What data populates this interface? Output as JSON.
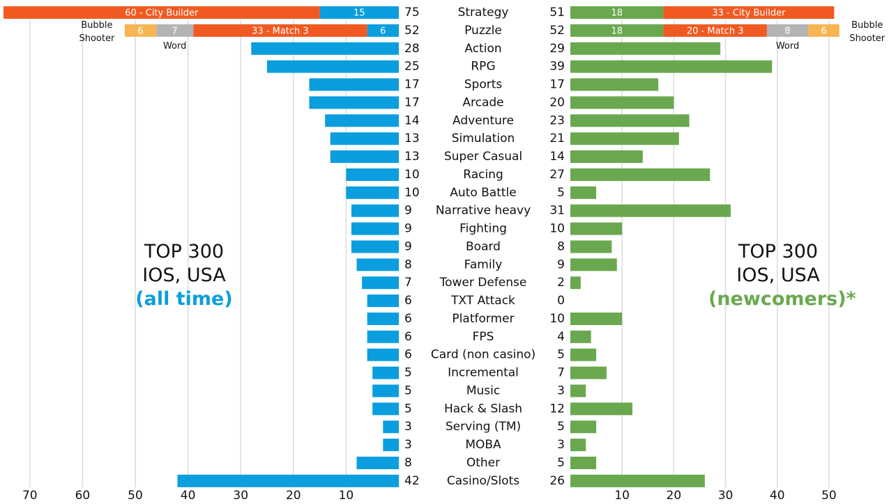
{
  "chart_data": {
    "type": "bar",
    "orientation": "horizontal",
    "categories": [
      "Strategy",
      "Puzzle",
      "Action",
      "RPG",
      "Sports",
      "Arcade",
      "Adventure",
      "Simulation",
      "Super Casual",
      "Racing",
      "Auto Battle",
      "Narrative heavy",
      "Fighting",
      "Board",
      "Family",
      "Tower Defense",
      "TXT Attack",
      "Platformer",
      "FPS",
      "Card (non casino)",
      "Incremental",
      "Music",
      "Hack & Slash",
      "Serving (TM)",
      "MOBA",
      "Other",
      "Casino/Slots"
    ],
    "panels": [
      {
        "title": "TOP 300 IOS, USA",
        "subtitle": "(all time)",
        "color": "#0a9ede",
        "values": [
          75,
          52,
          28,
          25,
          17,
          17,
          14,
          13,
          13,
          10,
          10,
          9,
          9,
          9,
          8,
          7,
          6,
          6,
          6,
          6,
          5,
          5,
          5,
          3,
          3,
          8,
          42
        ],
        "segments": [
          [
            {
              "value": 15,
              "color": "#0a9ede"
            },
            {
              "value": 60,
              "color": "#f05a22",
              "label": "60 - City Builder"
            }
          ],
          [
            {
              "value": 6,
              "color": "#0a9ede"
            },
            {
              "value": 33,
              "color": "#f05a22",
              "label": "33 - Match 3"
            },
            {
              "value": 7,
              "color": "#b3b3b3",
              "note": "Word"
            },
            {
              "value": 6,
              "color": "#f7b551",
              "note": "Bubble Shooter"
            }
          ]
        ],
        "xlim": [
          0,
          75
        ],
        "xticks": [
          10,
          20,
          30,
          40,
          50,
          60,
          70
        ],
        "grid": true
      },
      {
        "title": "TOP 300 IOS, USA",
        "subtitle": "(newcomers)*",
        "color": "#6aa84f",
        "values": [
          51,
          52,
          29,
          39,
          17,
          20,
          23,
          21,
          14,
          27,
          5,
          31,
          10,
          8,
          9,
          2,
          0,
          10,
          4,
          5,
          7,
          3,
          12,
          5,
          3,
          5,
          26
        ],
        "segments": [
          [
            {
              "value": 18,
              "color": "#6aa84f"
            },
            {
              "value": 33,
              "color": "#f05a22",
              "label": "33 - City Builder"
            }
          ],
          [
            {
              "value": 18,
              "color": "#6aa84f"
            },
            {
              "value": 20,
              "color": "#f05a22",
              "label": "20 - Match 3"
            },
            {
              "value": 8,
              "color": "#b3b3b3",
              "note": "Word"
            },
            {
              "value": 6,
              "color": "#f7b551",
              "note": "Bubble Shooter"
            }
          ]
        ],
        "xlim": [
          0,
          55
        ],
        "xticks": [
          10,
          20,
          30,
          40,
          50
        ],
        "grid": true
      }
    ]
  }
}
